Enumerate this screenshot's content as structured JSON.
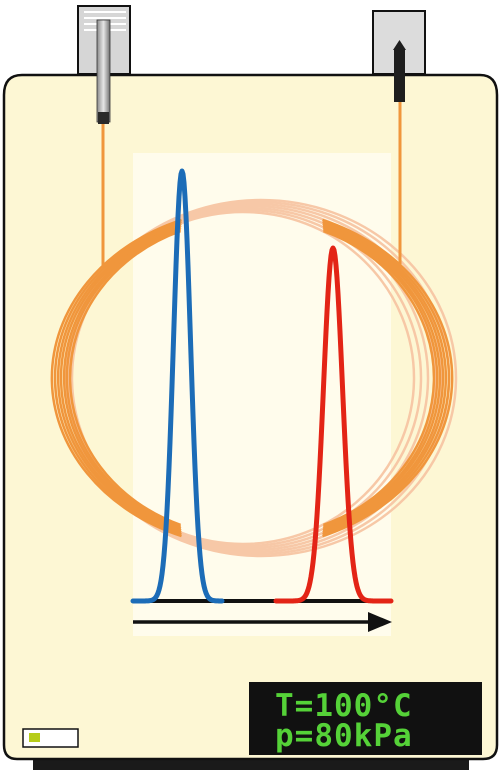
{
  "display": {
    "temperature": "T=100°C",
    "pressure": "p=80kPa"
  },
  "colors": {
    "oven_body": "#fdf7d4",
    "oven_outline": "#111111",
    "column_coil": "#f0963c",
    "column_coil_back": "#f7c6a4",
    "peak_1": "#1c6cb7",
    "peak_2": "#e32416",
    "baseline": "#111111",
    "display_background": "#111111",
    "display_text": "#55d238",
    "indicator_light": "#b6cc1a"
  },
  "icons": {
    "injector": "injector-icon",
    "detector": "detector-icon",
    "time_arrow": "arrow-right-icon",
    "indicator": "indicator-light-icon"
  }
}
